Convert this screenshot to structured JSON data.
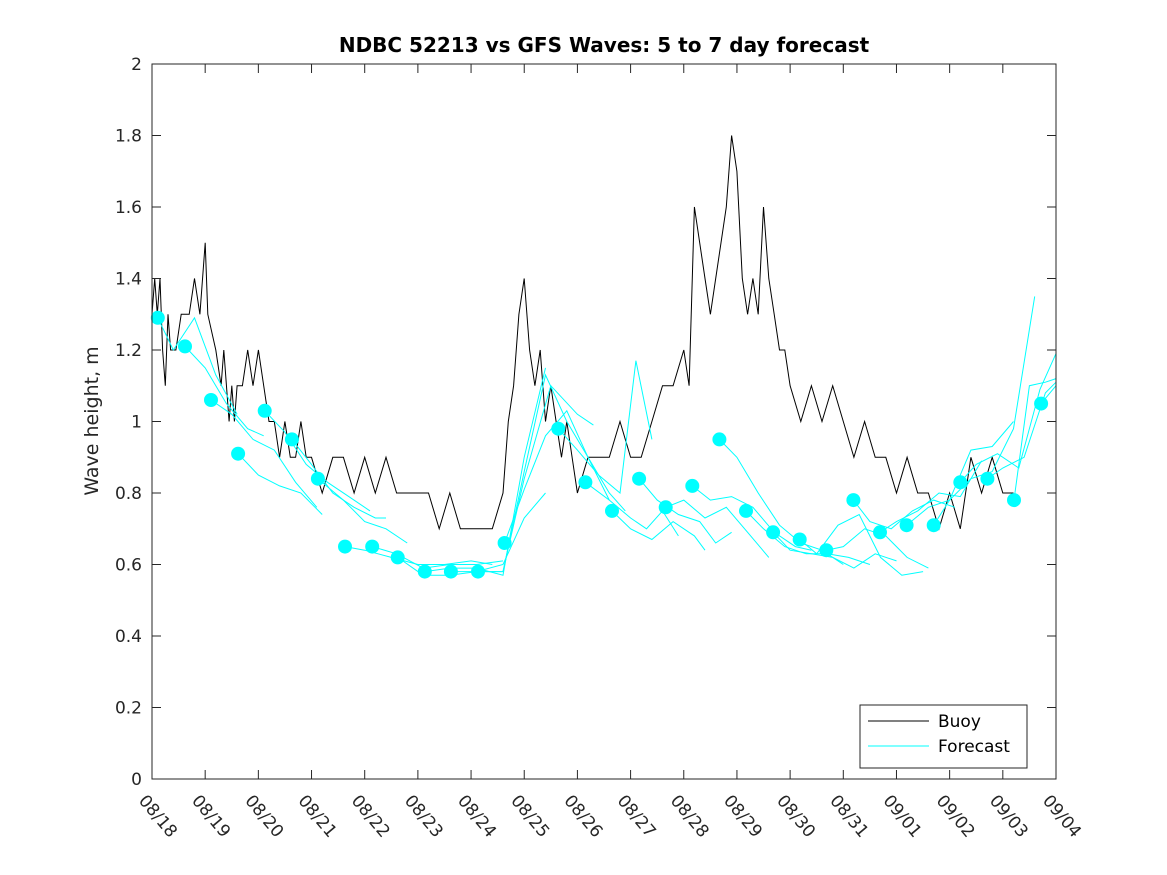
{
  "chart_data": {
    "type": "line",
    "title": "NDBC 52213 vs GFS Waves: 5 to 7 day forecast",
    "xlabel": "",
    "ylabel": "Wave height, m",
    "ylim": [
      0,
      2
    ],
    "xlim_days": [
      0,
      17
    ],
    "yticks": [
      "0",
      "0.2",
      "0.4",
      "0.6",
      "0.8",
      "1",
      "1.2",
      "1.4",
      "1.6",
      "1.8",
      "2"
    ],
    "ytick_values": [
      0,
      0.2,
      0.4,
      0.6,
      0.8,
      1.0,
      1.2,
      1.4,
      1.6,
      1.8,
      2.0
    ],
    "xticks": [
      "08/18",
      "08/19",
      "08/20",
      "08/21",
      "08/22",
      "08/23",
      "08/24",
      "08/25",
      "08/26",
      "08/27",
      "08/28",
      "08/29",
      "08/30",
      "08/31",
      "09/01",
      "09/02",
      "09/03",
      "09/04"
    ],
    "grid": false,
    "legend": {
      "placement": "bottom-right",
      "entries": [
        {
          "label": "Buoy",
          "color": "#000000"
        },
        {
          "label": "Forecast",
          "color": "#00ffff"
        }
      ]
    },
    "colors": {
      "buoy": "#000000",
      "forecast": "#00ffff",
      "marker": "#00ffff"
    },
    "series": [
      {
        "name": "Buoy",
        "x_days": [
          0.0,
          0.05,
          0.1,
          0.15,
          0.2,
          0.25,
          0.3,
          0.35,
          0.45,
          0.55,
          0.6,
          0.7,
          0.8,
          0.9,
          1.0,
          1.05,
          1.2,
          1.3,
          1.35,
          1.45,
          1.5,
          1.55,
          1.6,
          1.7,
          1.8,
          1.9,
          2.0,
          2.1,
          2.2,
          2.3,
          2.4,
          2.5,
          2.6,
          2.7,
          2.8,
          2.9,
          3.0,
          3.2,
          3.4,
          3.6,
          3.8,
          4.0,
          4.2,
          4.4,
          4.6,
          4.8,
          5.0,
          5.2,
          5.4,
          5.6,
          5.8,
          6.0,
          6.2,
          6.4,
          6.6,
          6.7,
          6.8,
          6.9,
          7.0,
          7.1,
          7.2,
          7.3,
          7.4,
          7.5,
          7.6,
          7.7,
          7.8,
          7.9,
          8.0,
          8.2,
          8.4,
          8.6,
          8.8,
          9.0,
          9.2,
          9.4,
          9.6,
          9.8,
          10.0,
          10.1,
          10.2,
          10.3,
          10.4,
          10.5,
          10.6,
          10.7,
          10.8,
          10.9,
          11.0,
          11.1,
          11.2,
          11.3,
          11.4,
          11.5,
          11.6,
          11.7,
          11.8,
          11.9,
          12.0,
          12.2,
          12.4,
          12.6,
          12.8,
          13.0,
          13.2,
          13.4,
          13.6,
          13.8,
          14.0,
          14.2,
          14.4,
          14.6,
          14.8,
          15.0,
          15.2,
          15.4,
          15.6,
          15.8,
          16.0,
          16.2
        ],
        "values": [
          1.3,
          1.4,
          1.3,
          1.4,
          1.2,
          1.1,
          1.3,
          1.2,
          1.2,
          1.3,
          1.3,
          1.3,
          1.4,
          1.3,
          1.5,
          1.3,
          1.2,
          1.1,
          1.2,
          1.0,
          1.1,
          1.0,
          1.1,
          1.1,
          1.2,
          1.1,
          1.2,
          1.1,
          1.0,
          1.0,
          0.9,
          1.0,
          0.9,
          0.9,
          1.0,
          0.9,
          0.9,
          0.8,
          0.9,
          0.9,
          0.8,
          0.9,
          0.8,
          0.9,
          0.8,
          0.8,
          0.8,
          0.8,
          0.7,
          0.8,
          0.7,
          0.7,
          0.7,
          0.7,
          0.8,
          1.0,
          1.1,
          1.3,
          1.4,
          1.2,
          1.1,
          1.2,
          1.0,
          1.1,
          1.0,
          0.9,
          1.0,
          0.9,
          0.8,
          0.9,
          0.9,
          0.9,
          1.0,
          0.9,
          0.9,
          1.0,
          1.1,
          1.1,
          1.2,
          1.1,
          1.6,
          1.5,
          1.4,
          1.3,
          1.4,
          1.5,
          1.6,
          1.8,
          1.7,
          1.4,
          1.3,
          1.4,
          1.3,
          1.6,
          1.4,
          1.3,
          1.2,
          1.2,
          1.1,
          1.0,
          1.1,
          1.0,
          1.1,
          1.0,
          0.9,
          1.0,
          0.9,
          0.9,
          0.8,
          0.9,
          0.8,
          0.8,
          0.7,
          0.8,
          0.7,
          0.9,
          0.8,
          0.9,
          0.8,
          0.8
        ]
      }
    ],
    "forecasts": [
      {
        "x_days": [
          0.11,
          0.4,
          0.8,
          1.2,
          1.6
        ],
        "values": [
          1.29,
          1.2,
          1.29,
          1.13,
          1.02
        ]
      },
      {
        "x_days": [
          0.62,
          1.0,
          1.4,
          1.8,
          2.1
        ],
        "values": [
          1.21,
          1.15,
          1.05,
          0.98,
          0.96
        ]
      },
      {
        "x_days": [
          1.11,
          1.5,
          1.9,
          2.3,
          2.7,
          3.1
        ],
        "values": [
          1.06,
          1.02,
          0.95,
          0.92,
          0.83,
          0.76
        ]
      },
      {
        "x_days": [
          1.62,
          2.0,
          2.4,
          2.8,
          3.2
        ],
        "values": [
          0.91,
          0.85,
          0.82,
          0.8,
          0.74
        ]
      },
      {
        "x_days": [
          2.12,
          2.5,
          2.9,
          3.3,
          3.7,
          4.1
        ],
        "values": [
          1.03,
          0.97,
          0.88,
          0.83,
          0.79,
          0.75
        ]
      },
      {
        "x_days": [
          2.63,
          3.0,
          3.4,
          3.8,
          4.2,
          4.4
        ],
        "values": [
          0.95,
          0.88,
          0.8,
          0.76,
          0.73,
          0.73
        ]
      },
      {
        "x_days": [
          3.12,
          3.6,
          4.0,
          4.4,
          4.8
        ],
        "values": [
          0.84,
          0.78,
          0.72,
          0.7,
          0.66
        ]
      },
      {
        "x_days": [
          3.63,
          4.0,
          4.5,
          5.0,
          5.5,
          6.0,
          6.4
        ],
        "values": [
          0.65,
          0.64,
          0.62,
          0.6,
          0.6,
          0.61,
          0.6
        ]
      },
      {
        "x_days": [
          4.14,
          4.6,
          5.1,
          5.6,
          6.1,
          6.6
        ],
        "values": [
          0.65,
          0.63,
          0.59,
          0.6,
          0.6,
          0.61
        ]
      },
      {
        "x_days": [
          4.62,
          5.1,
          5.6,
          6.1,
          6.6,
          7.0,
          7.4
        ],
        "values": [
          0.62,
          0.57,
          0.57,
          0.58,
          0.6,
          0.73,
          0.8
        ]
      },
      {
        "x_days": [
          5.13,
          5.6,
          6.1,
          6.6,
          7.0,
          7.4
        ],
        "values": [
          0.58,
          0.59,
          0.59,
          0.57,
          0.9,
          1.15
        ]
      },
      {
        "x_days": [
          5.62,
          6.1,
          6.6,
          7.0,
          7.5,
          8.0,
          8.3
        ],
        "values": [
          0.58,
          0.58,
          0.58,
          0.84,
          1.1,
          1.02,
          0.99
        ]
      },
      {
        "x_days": [
          6.13,
          6.6,
          7.0,
          7.4,
          7.8,
          8.2,
          8.6
        ],
        "values": [
          0.58,
          0.58,
          0.86,
          1.13,
          1.0,
          0.9,
          0.78
        ]
      },
      {
        "x_days": [
          6.63,
          7.0,
          7.4,
          7.8,
          8.2,
          8.6,
          8.9
        ],
        "values": [
          0.66,
          0.81,
          0.96,
          1.03,
          0.9,
          0.8,
          0.75
        ]
      },
      {
        "x_days": [
          7.64,
          8.0,
          8.4,
          8.8,
          9.1,
          9.4
        ],
        "values": [
          0.98,
          0.92,
          0.85,
          0.8,
          1.17,
          0.95
        ]
      },
      {
        "x_days": [
          8.15,
          8.6,
          9.0,
          9.3,
          9.6,
          9.9
        ],
        "values": [
          0.83,
          0.78,
          0.73,
          0.7,
          0.75,
          0.68
        ]
      },
      {
        "x_days": [
          8.65,
          9.0,
          9.4,
          9.8,
          10.2,
          10.4
        ],
        "values": [
          0.75,
          0.7,
          0.67,
          0.72,
          0.68,
          0.64
        ]
      },
      {
        "x_days": [
          9.16,
          9.5,
          9.9,
          10.3,
          10.6,
          10.9
        ],
        "values": [
          0.84,
          0.78,
          0.74,
          0.72,
          0.66,
          0.69
        ]
      },
      {
        "x_days": [
          9.66,
          10.0,
          10.4,
          10.8,
          11.2,
          11.6
        ],
        "values": [
          0.76,
          0.78,
          0.73,
          0.76,
          0.69,
          0.62
        ]
      },
      {
        "x_days": [
          10.16,
          10.5,
          10.9,
          11.3,
          11.7,
          12.1,
          12.4
        ],
        "values": [
          0.82,
          0.78,
          0.79,
          0.76,
          0.69,
          0.65,
          0.64
        ]
      },
      {
        "x_days": [
          10.67,
          11.0,
          11.4,
          11.8,
          12.2,
          12.6,
          13.0
        ],
        "values": [
          0.95,
          0.9,
          0.8,
          0.71,
          0.66,
          0.64,
          0.6
        ]
      },
      {
        "x_days": [
          11.17,
          11.5,
          11.9,
          12.3,
          12.7,
          13.1,
          13.5
        ],
        "values": [
          0.75,
          0.7,
          0.65,
          0.63,
          0.63,
          0.62,
          0.6
        ]
      },
      {
        "x_days": [
          11.68,
          12.0,
          12.4,
          12.8,
          13.2,
          13.6,
          14.0
        ],
        "values": [
          0.69,
          0.64,
          0.63,
          0.62,
          0.59,
          0.63,
          0.61
        ]
      },
      {
        "x_days": [
          12.18,
          12.5,
          12.9,
          13.3,
          13.7,
          14.1,
          14.5
        ],
        "values": [
          0.67,
          0.63,
          0.71,
          0.74,
          0.62,
          0.57,
          0.58
        ]
      },
      {
        "x_days": [
          12.68,
          13.0,
          13.4,
          13.8,
          14.2,
          14.6
        ],
        "values": [
          0.64,
          0.65,
          0.7,
          0.68,
          0.62,
          0.59
        ]
      },
      {
        "x_days": [
          13.19,
          13.5,
          13.9,
          14.3,
          14.7,
          15.1
        ],
        "values": [
          0.78,
          0.72,
          0.7,
          0.75,
          0.78,
          0.76
        ]
      },
      {
        "x_days": [
          13.69,
          14.0,
          14.4,
          14.8,
          15.2,
          15.6
        ],
        "values": [
          0.69,
          0.72,
          0.75,
          0.8,
          0.79,
          0.89
        ]
      },
      {
        "x_days": [
          14.19,
          14.6,
          15.0,
          15.4,
          15.8,
          16.2
        ],
        "values": [
          0.71,
          0.76,
          0.78,
          0.92,
          0.93,
          1.0
        ]
      },
      {
        "x_days": [
          14.7,
          15.0,
          15.4,
          15.8,
          16.2,
          16.6
        ],
        "values": [
          0.71,
          0.78,
          0.84,
          0.86,
          0.98,
          1.35
        ]
      },
      {
        "x_days": [
          15.2,
          15.5,
          15.9,
          16.3,
          16.7,
          17.0
        ],
        "values": [
          0.83,
          0.88,
          0.91,
          0.87,
          1.09,
          1.19
        ]
      },
      {
        "x_days": [
          15.71,
          16.0,
          16.4,
          16.8,
          17.0
        ],
        "values": [
          0.84,
          0.87,
          0.9,
          1.08,
          1.11
        ]
      },
      {
        "x_days": [
          16.21,
          16.5,
          16.8,
          17.0
        ],
        "values": [
          0.78,
          1.1,
          1.11,
          1.12
        ]
      },
      {
        "x_days": [
          16.72,
          17.0
        ],
        "values": [
          1.05,
          1.1
        ]
      }
    ]
  }
}
